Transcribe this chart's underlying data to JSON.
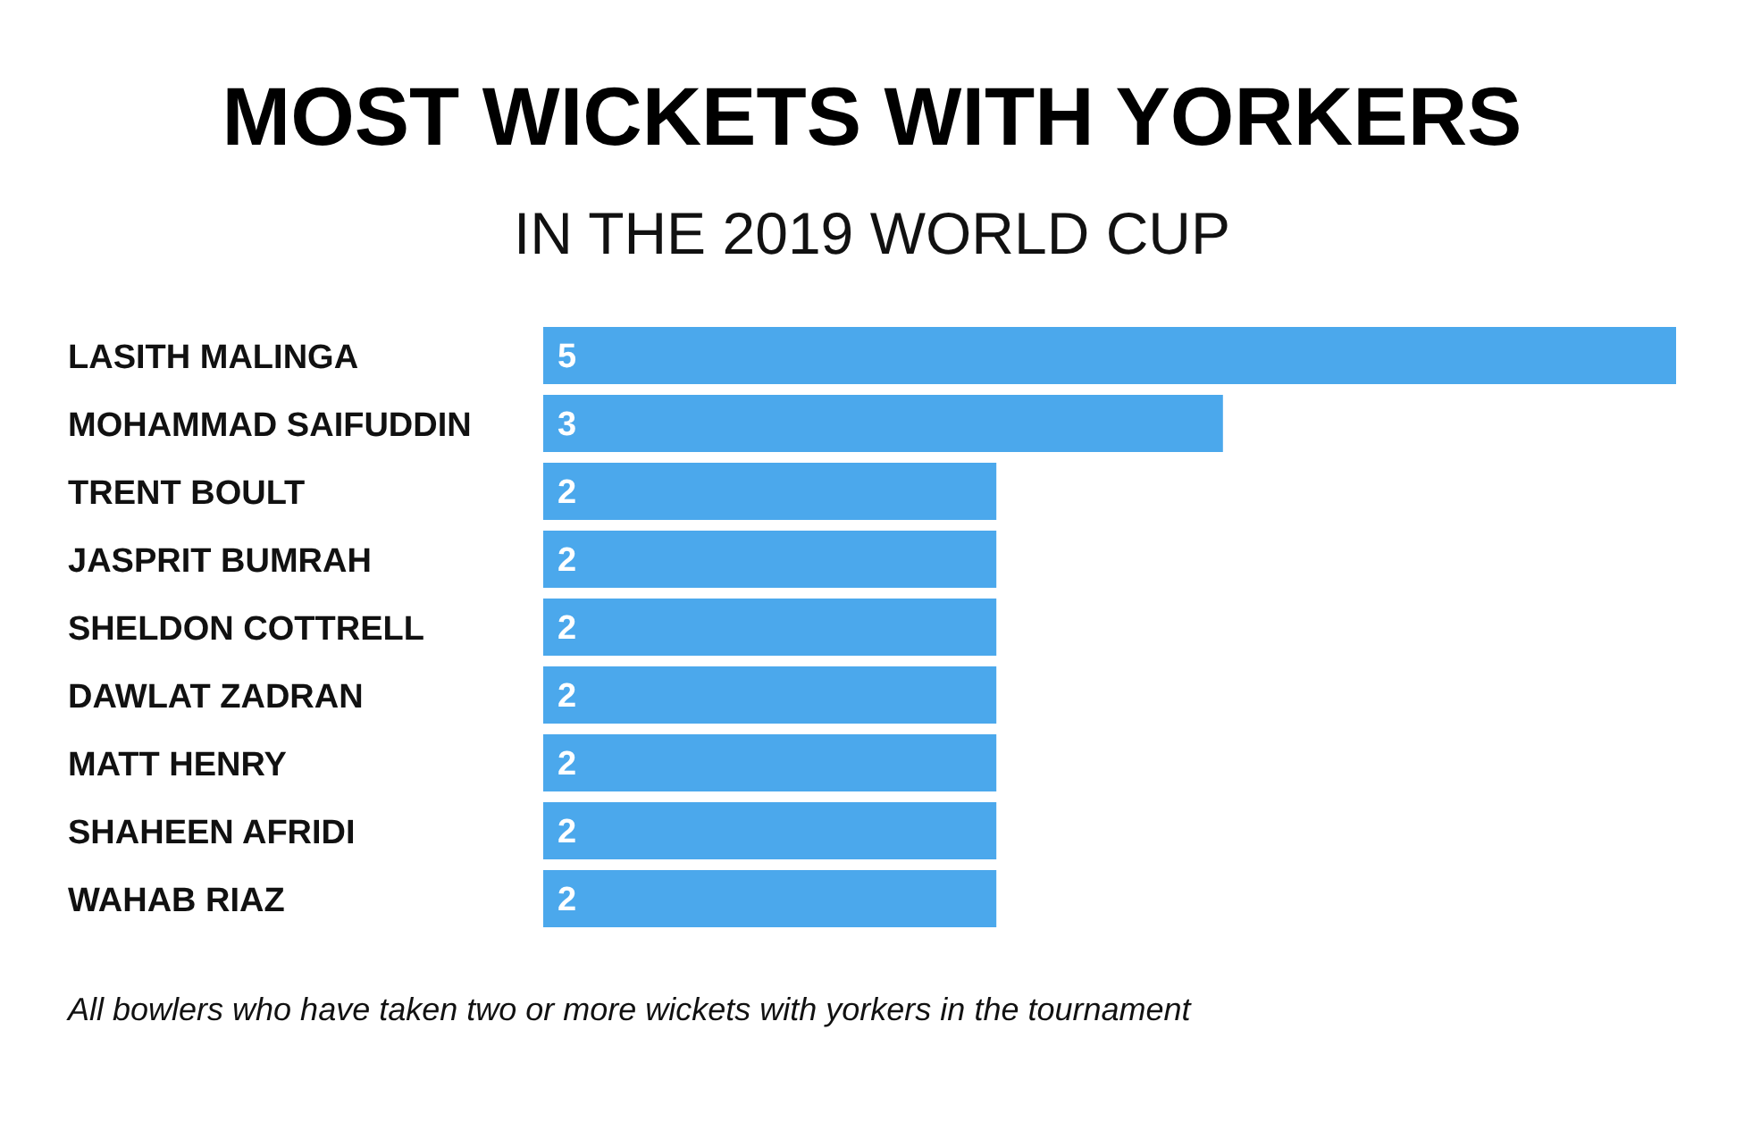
{
  "chart_data": {
    "type": "bar",
    "orientation": "horizontal",
    "title": "MOST WICKETS WITH YORKERS",
    "subtitle": "IN THE 2019 WORLD CUP",
    "categories": [
      "LASITH MALINGA",
      "MOHAMMAD SAIFUDDIN",
      "TRENT BOULT",
      "JASPRIT BUMRAH",
      "SHELDON COTTRELL",
      "DAWLAT ZADRAN",
      "MATT HENRY",
      "SHAHEEN AFRIDI",
      "WAHAB RIAZ"
    ],
    "values": [
      5,
      3,
      2,
      2,
      2,
      2,
      2,
      2,
      2
    ],
    "color": "#4ba8ec",
    "data_labels": true,
    "tick_labels": "y",
    "annotations": [
      "All bowlers who have taken two or more wickets with yorkers in the tournament"
    ]
  }
}
